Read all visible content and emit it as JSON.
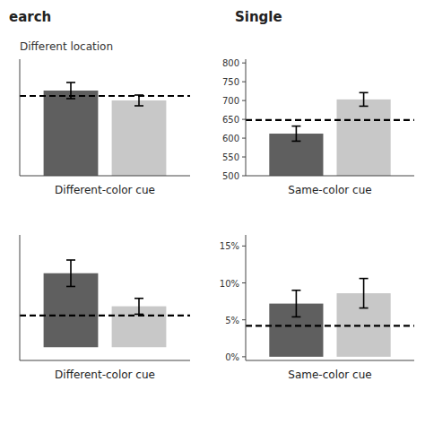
{
  "chart_data": [
    {
      "type": "bar",
      "title": "earch",
      "subtitle": "Different location",
      "categories": [
        null,
        null
      ],
      "values": [
        670,
        648
      ],
      "errors": [
        18,
        12
      ],
      "colors": [
        "#5f5f5f",
        "#c8c8c8"
      ],
      "reference_line": 658,
      "ylim": [
        480,
        740
      ],
      "x_label": "Different-color cue",
      "tick_labels": false
    },
    {
      "type": "bar",
      "title": "Single",
      "categories": [
        null,
        null
      ],
      "values": [
        612,
        703
      ],
      "errors": [
        20,
        18
      ],
      "colors": [
        "#5f5f5f",
        "#c8c8c8"
      ],
      "reference_line": 648,
      "ylim": [
        500,
        810
      ],
      "yticks": [
        500,
        550,
        600,
        650,
        700,
        750,
        800
      ],
      "x_label": "Same-color cue",
      "tick_labels": "y"
    },
    {
      "type": "bar",
      "categories": [
        null,
        null
      ],
      "values": [
        0.112,
        0.062
      ],
      "errors": [
        0.02,
        0.012
      ],
      "colors": [
        "#5f5f5f",
        "#c8c8c8"
      ],
      "reference_line": 0.048,
      "ylim": [
        -0.02,
        0.17
      ],
      "x_label": "Different-color cue",
      "tick_labels": false
    },
    {
      "type": "bar",
      "categories": [
        null,
        null
      ],
      "values": [
        0.072,
        0.086
      ],
      "errors": [
        0.018,
        0.02
      ],
      "colors": [
        "#5f5f5f",
        "#c8c8c8"
      ],
      "reference_line": 0.042,
      "ylim": [
        -0.005,
        0.165
      ],
      "yticks": [
        {
          "value": 0.0,
          "label": "0%"
        },
        {
          "value": 0.05,
          "label": "5%"
        },
        {
          "value": 0.1,
          "label": "10%"
        },
        {
          "value": 0.15,
          "label": "15%"
        }
      ],
      "x_label": "Same-color cue",
      "tick_labels": "y"
    }
  ]
}
